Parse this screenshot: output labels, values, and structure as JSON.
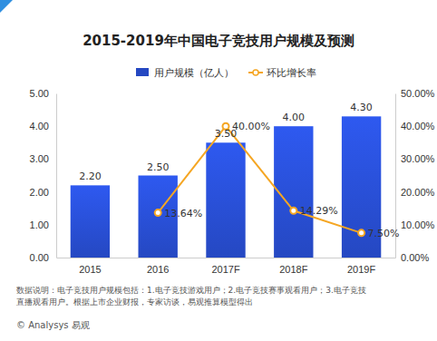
{
  "chart_data": {
    "type": "bar",
    "title": "2015-2019年中国电子竞技用户规模及预测",
    "categories": [
      "2015",
      "2016",
      "2017F",
      "2018F",
      "2019F"
    ],
    "series": [
      {
        "name": "用户规模（亿人）",
        "type": "bar",
        "color": "#2548c2",
        "values": [
          2.2,
          2.5,
          3.5,
          4.0,
          4.3
        ],
        "value_labels": [
          "2.20",
          "2.50",
          "3.50",
          "4.00",
          "4.30"
        ]
      },
      {
        "name": "环比增长率",
        "type": "line",
        "axis": "y2",
        "color": "#f5a623",
        "marker": "circle",
        "values": [
          null,
          13.64,
          40.0,
          14.29,
          7.5
        ],
        "value_labels": [
          null,
          "13.64%",
          "40.00%",
          "14.29%",
          "7.50%"
        ]
      }
    ],
    "ylim": [
      0,
      5
    ],
    "yticks": [
      {
        "value": 0,
        "label": "0.00"
      },
      {
        "value": 1,
        "label": "1.00"
      },
      {
        "value": 2,
        "label": "2.00"
      },
      {
        "value": 3,
        "label": "3.00"
      },
      {
        "value": 4,
        "label": "4.00"
      },
      {
        "value": 5,
        "label": "5.00"
      }
    ],
    "y2lim": [
      0,
      50
    ],
    "y2ticks": [
      {
        "value": 0,
        "label": "0.00%"
      },
      {
        "value": 10,
        "label": "10.00%"
      },
      {
        "value": 20,
        "label": "20.00%"
      },
      {
        "value": 30,
        "label": "30.00%"
      },
      {
        "value": 40,
        "label": "40.00%"
      },
      {
        "value": 50,
        "label": "50.00%"
      }
    ],
    "grid": false,
    "legend": "top",
    "data_labels": true,
    "footnote": [
      "数据说明：电子竞技用户规模包括：1.电子竞技游戏用户；2.电子竞技赛事观看用户；3.电子竞技",
      "直播观看用户。根据上市企业财报，专家访谈，易观推算模型得出"
    ],
    "source": "© Analysys 易观"
  }
}
